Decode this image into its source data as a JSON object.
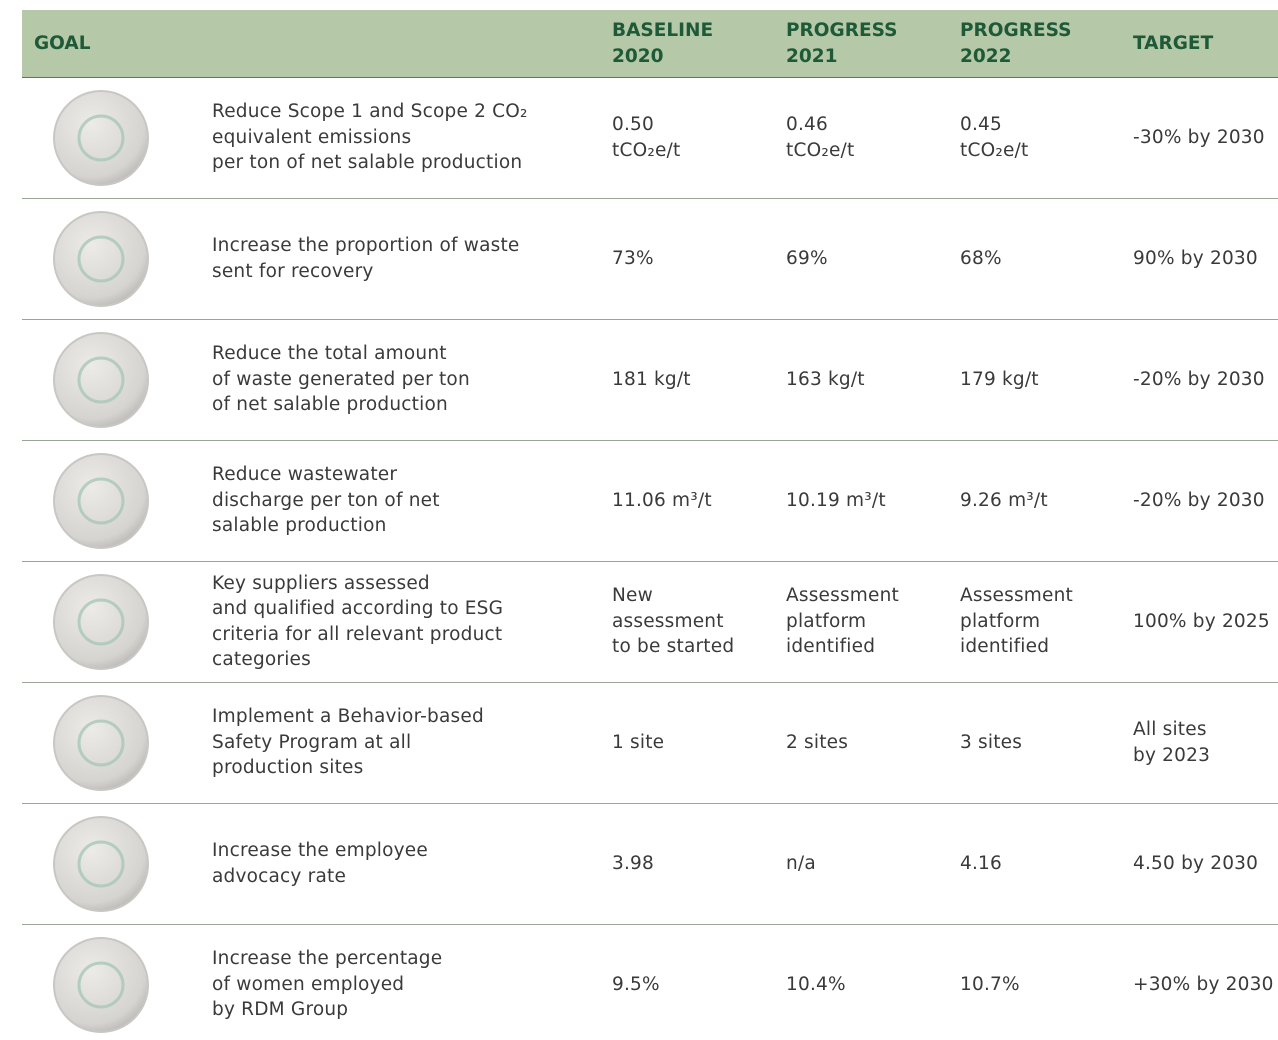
{
  "header": {
    "goal": [
      "GOAL"
    ],
    "columns": [
      [
        "BASELINE",
        "2020"
      ],
      [
        "PROGRESS",
        "2021"
      ],
      [
        "PROGRESS",
        "2022"
      ],
      [
        "TARGET"
      ]
    ]
  },
  "rows": [
    {
      "goal": [
        "Reduce Scope 1 and Scope 2 CO₂",
        "equivalent emissions",
        "per ton of net salable production"
      ],
      "values": [
        [
          "0.50",
          "tCO₂e/t"
        ],
        [
          "0.46",
          "tCO₂e/t"
        ],
        [
          "0.45",
          "tCO₂e/t"
        ],
        [
          "-30% by 2030"
        ]
      ]
    },
    {
      "goal": [
        "Increase the proportion of waste",
        "sent for recovery"
      ],
      "values": [
        [
          "73%"
        ],
        [
          "69%"
        ],
        [
          "68%"
        ],
        [
          "90% by 2030"
        ]
      ]
    },
    {
      "goal": [
        "Reduce the total amount",
        "of waste generated per ton",
        "of net salable production"
      ],
      "values": [
        [
          "181 kg/t"
        ],
        [
          "163 kg/t"
        ],
        [
          "179 kg/t"
        ],
        [
          "-20% by 2030"
        ]
      ]
    },
    {
      "goal": [
        "Reduce wastewater",
        "discharge per ton of net",
        "salable production"
      ],
      "values": [
        [
          "11.06 m³/t"
        ],
        [
          "10.19 m³/t"
        ],
        [
          "9.26 m³/t"
        ],
        [
          "-20% by 2030"
        ]
      ]
    },
    {
      "goal": [
        "Key suppliers assessed",
        "and qualified according to ESG",
        "criteria for all relevant product",
        "categories"
      ],
      "values": [
        [
          "New",
          "assessment",
          "to be started"
        ],
        [
          "Assessment",
          "platform",
          "identified"
        ],
        [
          "Assessment",
          "platform",
          "identified"
        ],
        [
          "100% by 2025"
        ]
      ]
    },
    {
      "goal": [
        "Implement a Behavior-based",
        "Safety Program at all",
        "production sites"
      ],
      "values": [
        [
          "1 site"
        ],
        [
          "2 sites"
        ],
        [
          "3 sites"
        ],
        [
          "All sites",
          "by 2023"
        ]
      ]
    },
    {
      "goal": [
        "Increase the employee",
        "advocacy rate"
      ],
      "values": [
        [
          "3.98"
        ],
        [
          "n/a"
        ],
        [
          "4.16"
        ],
        [
          "4.50 by 2030"
        ]
      ]
    },
    {
      "goal": [
        "Increase the percentage",
        "of women employed",
        "by RDM Group"
      ],
      "values": [
        [
          "9.5%"
        ],
        [
          "10.4%"
        ],
        [
          "10.7%"
        ],
        [
          "+30% by 2030"
        ]
      ]
    }
  ]
}
